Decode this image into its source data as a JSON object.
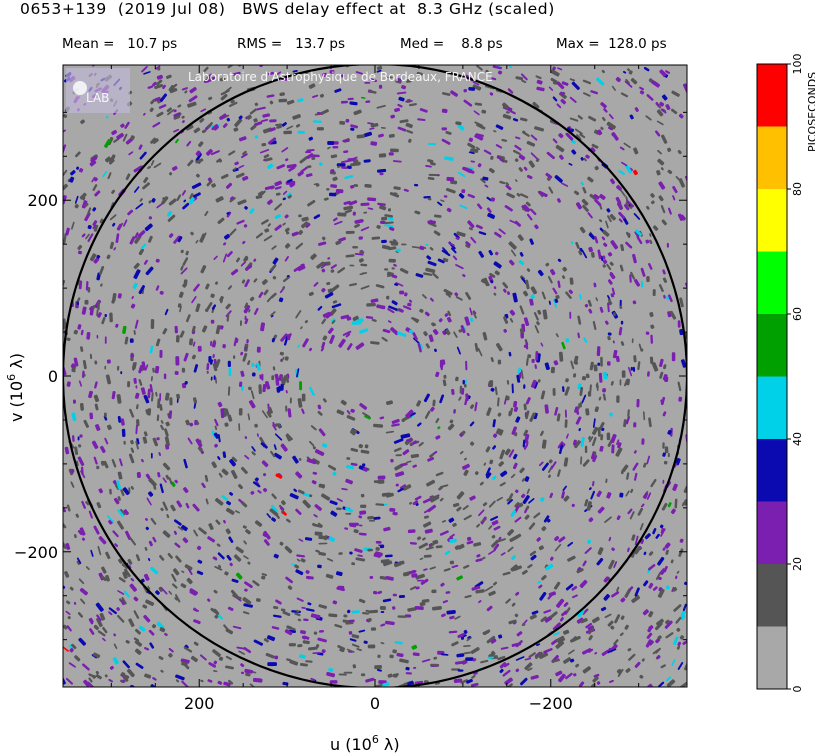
{
  "header": {
    "title": "0653+139  (2019 Jul 08)   BWS delay effect at  8.3 GHz (scaled)",
    "stats": {
      "mean": "Mean =   10.7 ps",
      "rms": "RMS =   13.7 ps",
      "med": "Med =    8.8 ps",
      "max": "Max =  128.0 ps"
    }
  },
  "watermark": {
    "institute": "Laboratoire d'Astrophysique de Bordeaux, FRANCE",
    "logo_text": "LAB"
  },
  "chart_data": {
    "type": "heatmap",
    "title": "0653+139  (2019 Jul 08)   BWS delay effect at  8.3 GHz (scaled)",
    "xlabel": "u  (10⁶ λ)",
    "ylabel": "v  (10⁶ λ)",
    "xlim": [
      355,
      -355
    ],
    "ylim": [
      -355,
      355
    ],
    "x_ticks": [
      200,
      0,
      -200
    ],
    "x_tick_labels": [
      "200",
      "0",
      "−200"
    ],
    "y_ticks": [
      200,
      0,
      -200
    ],
    "y_tick_labels": [
      "200",
      "0",
      "−200"
    ],
    "uv_circle_radius": 355,
    "colorbar": {
      "label": "PICOSECONDS",
      "min": 0,
      "max": 100,
      "tick_values": [
        0,
        20,
        40,
        60,
        80,
        100
      ],
      "tick_labels": [
        "0",
        "20",
        "40",
        "60",
        "80",
        "100"
      ],
      "bands": [
        {
          "from": 0,
          "to": 10,
          "color": "#a8a8a8"
        },
        {
          "from": 10,
          "to": 20,
          "color": "#555555"
        },
        {
          "from": 20,
          "to": 30,
          "color": "#7b1fb0"
        },
        {
          "from": 30,
          "to": 40,
          "color": "#0a0ab0"
        },
        {
          "from": 40,
          "to": 50,
          "color": "#00d0e8"
        },
        {
          "from": 50,
          "to": 60,
          "color": "#00a000"
        },
        {
          "from": 60,
          "to": 70,
          "color": "#00ff00"
        },
        {
          "from": 70,
          "to": 80,
          "color": "#ffff00"
        },
        {
          "from": 80,
          "to": 90,
          "color": "#ffc000"
        },
        {
          "from": 90,
          "to": 100,
          "color": "#ff0000"
        }
      ]
    },
    "statistics": {
      "mean": 10.7,
      "rms": 13.7,
      "median": 8.8,
      "max": 128.0,
      "unit": "ps"
    }
  }
}
